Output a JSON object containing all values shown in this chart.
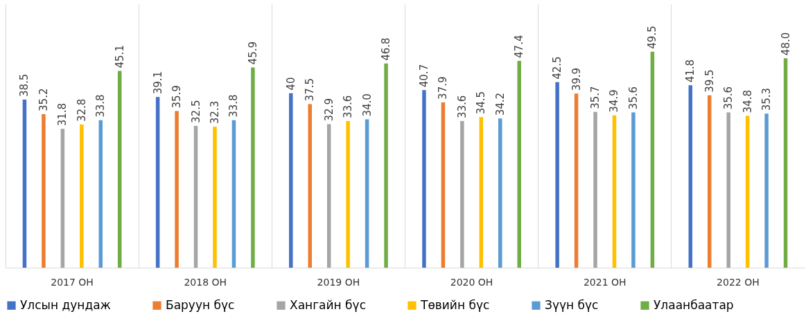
{
  "chart_data": {
    "type": "bar",
    "categories": [
      "2017 ОН",
      "2018 ОН",
      "2019 ОН",
      "2020 ОН",
      "2021 ОН",
      "2022 ОН"
    ],
    "series": [
      {
        "name": "Улсын дундаж",
        "color": "#4472c4",
        "values": [
          38.5,
          39.1,
          40,
          40.7,
          42.5,
          41.8
        ],
        "value_labels": [
          "38.5",
          "39.1",
          "40",
          "40.7",
          "42.5",
          "41.8"
        ]
      },
      {
        "name": "Баруун бүс",
        "color": "#ed7d31",
        "values": [
          35.2,
          35.9,
          37.5,
          37.9,
          39.9,
          39.5
        ],
        "value_labels": [
          "35.2",
          "35.9",
          "37.5",
          "37.9",
          "39.9",
          "39.5"
        ]
      },
      {
        "name": "Хангайн бүс",
        "color": "#a5a5a5",
        "values": [
          31.8,
          32.5,
          32.9,
          33.6,
          35.7,
          35.6
        ],
        "value_labels": [
          "31.8",
          "32.5",
          "32.9",
          "33.6",
          "35.7",
          "35.6"
        ]
      },
      {
        "name": "Төвийн бүс",
        "color": "#ffc000",
        "values": [
          32.8,
          32.3,
          33.6,
          34.5,
          34.9,
          34.8
        ],
        "value_labels": [
          "32.8",
          "32.3",
          "33.6",
          "34.5",
          "34.9",
          "34.8"
        ]
      },
      {
        "name": "Зүүн бүс",
        "color": "#5b9bd5",
        "values": [
          33.8,
          33.8,
          34.0,
          34.2,
          35.6,
          35.3
        ],
        "value_labels": [
          "33.8",
          "33.8",
          "34.0",
          "34.2",
          "35.6",
          "35.3"
        ]
      },
      {
        "name": "Улаанбаатар",
        "color": "#70ad47",
        "values": [
          45.1,
          45.9,
          46.8,
          47.4,
          49.5,
          48.0
        ],
        "value_labels": [
          "45.1",
          "45.9",
          "46.8",
          "47.4",
          "49.5",
          "48.0"
        ]
      }
    ],
    "grid": "x",
    "legend": "bottom"
  }
}
